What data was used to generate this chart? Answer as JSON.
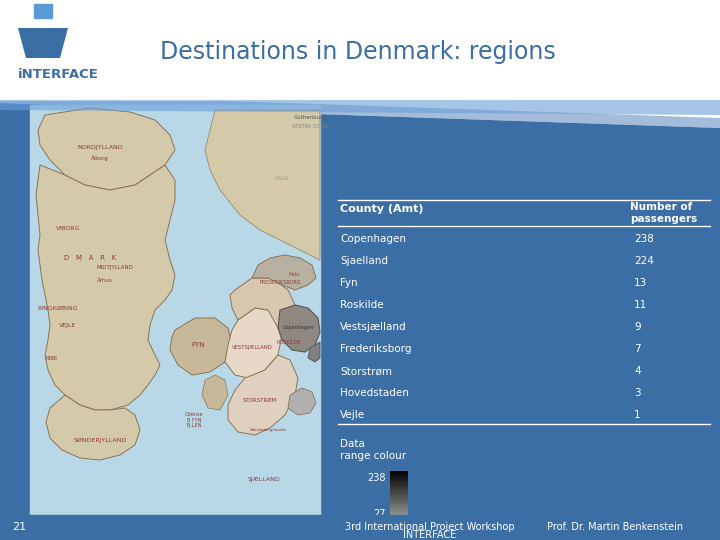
{
  "title": "Destinations in Denmark: regions",
  "bg_color": "#ffffff",
  "blue_panel_color": "#3a6ea5",
  "table_header_col1": "County (Amt)",
  "counties": [
    "Copenhagen",
    "Sjaelland",
    "Fyn",
    "Roskilde",
    "Vestsjælland",
    "Frederiksborg",
    "Storstrøm",
    "Hovedstaden",
    "Vejle"
  ],
  "passengers": [
    238,
    224,
    13,
    11,
    9,
    7,
    4,
    3,
    1
  ],
  "footer_left1": "3rd International Project Workshop",
  "footer_left2": "INTERFACE",
  "footer_right": "Prof. Dr. Martin Benkenstein",
  "slide_number": "21",
  "data_range_label1": "Data",
  "data_range_label2": "range colour",
  "white": "#ffffff",
  "light_blue_map_bg": "#b8d8e8",
  "map_land_color": "#d4c9a8",
  "map_border_color": "#8b7355",
  "map_highlight_light": "#c8b89a",
  "map_highlight_dark": "#888888",
  "blue_panel_light": "#4a7ab5"
}
